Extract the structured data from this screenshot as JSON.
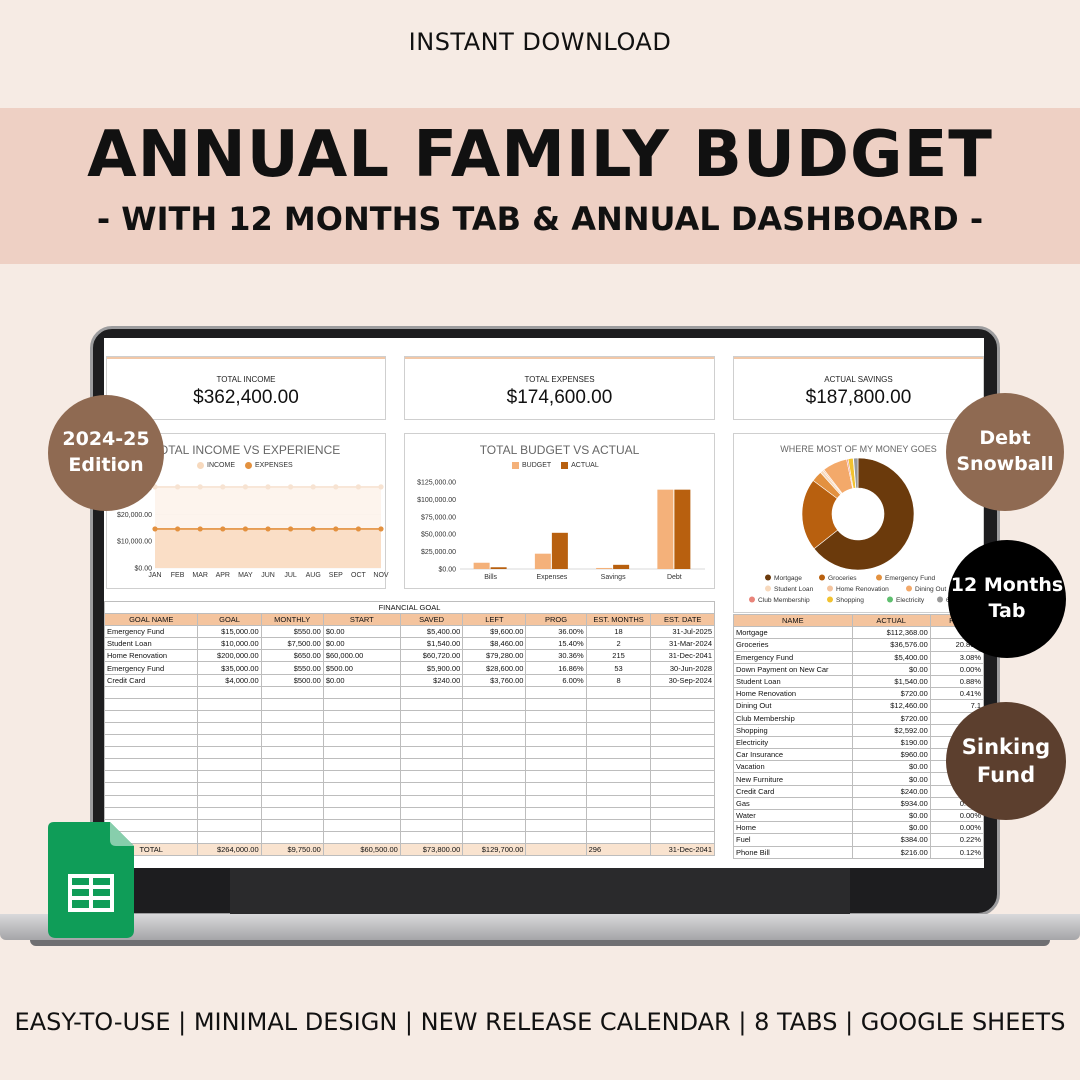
{
  "header": {
    "top_label": "INSTANT DOWNLOAD",
    "title": "ANNUAL FAMILY BUDGET",
    "subtitle": "- WITH 12 MONTHS TAB & ANNUAL DASHBOARD -"
  },
  "footer": {
    "features": "EASY-TO-USE | MINIMAL DESIGN | NEW RELEASE CALENDAR | 8 TABS | GOOGLE SHEETS"
  },
  "badges": {
    "edition": [
      "2024-25",
      "Edition"
    ],
    "debt": [
      "Debt",
      "Snowball"
    ],
    "months": [
      "12 Months",
      "Tab"
    ],
    "sinking": [
      "Sinking",
      "Fund"
    ]
  },
  "kpis": [
    {
      "label": "TOTAL INCOME",
      "value": "$362,400.00"
    },
    {
      "label": "TOTAL EXPENSES",
      "value": "$174,600.00"
    },
    {
      "label": "ACTUAL SAVINGS",
      "value": "$187,800.00"
    }
  ],
  "colors": {
    "light_orange": "#f4b17a",
    "dark_orange": "#b8600f",
    "brown": "#6b3a0c",
    "badge_brown": "#8f6a52",
    "badge_dark_brown": "#5c3f2e",
    "sheets_green": "#0f9d58"
  },
  "chart_data": [
    {
      "type": "line",
      "title": "TOTAL INCOME VS EXPERIENCE",
      "categories": [
        "JAN",
        "FEB",
        "MAR",
        "APR",
        "MAY",
        "JUN",
        "JUL",
        "AUG",
        "SEP",
        "OCT",
        "NOV"
      ],
      "yticks": [
        "$0.00",
        "$10,000.00",
        "$20,000.00",
        "$30,000.00"
      ],
      "ylim": [
        0,
        35000
      ],
      "series": [
        {
          "name": "INCOME",
          "values": [
            30200,
            30200,
            30200,
            30200,
            30200,
            30200,
            30200,
            30200,
            30200,
            30200,
            30200
          ]
        },
        {
          "name": "EXPENSES",
          "values": [
            14550,
            14550,
            14550,
            14550,
            14550,
            14550,
            14550,
            14550,
            14550,
            14550,
            14550
          ]
        }
      ],
      "legend": "top"
    },
    {
      "type": "bar",
      "title": "TOTAL BUDGET VS ACTUAL",
      "categories": [
        "Bills",
        "Expenses",
        "Savings",
        "Debt"
      ],
      "yticks": [
        "$0.00",
        "$25,000.00",
        "$50,000.00",
        "$75,000.00",
        "$100,000.00",
        "$125,000.00"
      ],
      "ylim": [
        0,
        125000
      ],
      "series": [
        {
          "name": "BUDGET",
          "values": [
            9000,
            22000,
            1500,
            114000
          ]
        },
        {
          "name": "ACTUAL",
          "values": [
            2500,
            52000,
            6000,
            114000
          ]
        }
      ],
      "legend": "top"
    },
    {
      "type": "pie",
      "title": "WHERE MOST OF MY MONEY GOES",
      "categories": [
        "Mortgage",
        "Groceries",
        "Emergency Fund",
        "Student Loan",
        "Home Renovation",
        "Dining Out",
        "Club Membership",
        "Shopping",
        "Electricity",
        "6 m"
      ],
      "values": [
        64.36,
        20.86,
        3.08,
        0.88,
        0.41,
        7.14,
        0.41,
        1.48,
        0.11,
        1.27
      ],
      "colors": [
        "#6b3a0c",
        "#b8600f",
        "#e3913f",
        "#f7d9bd",
        "#f4c49e",
        "#f3a96a",
        "#e9847a",
        "#f2c230",
        "#5fbf6f",
        "#999999"
      ],
      "legend": "bottom"
    }
  ],
  "goal_table": {
    "caption": "FINANCIAL GOAL",
    "columns": [
      "GOAL NAME",
      "GOAL",
      "MONTHLY",
      "START",
      "SAVED",
      "LEFT",
      "PROG",
      "EST. MONTHS",
      "EST. DATE"
    ],
    "rows": [
      [
        "Emergency Fund",
        "$15,000.00",
        "$550.00",
        "$0.00",
        "$5,400.00",
        "$9,600.00",
        "36.00%",
        "18",
        "31-Jul-2025"
      ],
      [
        "Student Loan",
        "$10,000.00",
        "$7,500.00",
        "$0.00",
        "$1,540.00",
        "$8,460.00",
        "15.40%",
        "2",
        "31-Mar-2024"
      ],
      [
        "Home Renovation",
        "$200,000.00",
        "$650.00",
        "$60,000.00",
        "$60,720.00",
        "$79,280.00",
        "30.36%",
        "215",
        "31-Dec-2041"
      ],
      [
        "Emergency Fund",
        "$35,000.00",
        "$550.00",
        "$500.00",
        "$5,900.00",
        "$28,600.00",
        "16.86%",
        "53",
        "30-Jun-2028"
      ],
      [
        "Credit Card",
        "$4,000.00",
        "$500.00",
        "$0.00",
        "$240.00",
        "$3,760.00",
        "6.00%",
        "8",
        "30-Sep-2024"
      ]
    ],
    "total": [
      "TOTAL",
      "$264,000.00",
      "$9,750.00",
      "$60,500.00",
      "$73,800.00",
      "$129,700.00",
      "",
      "296",
      "31-Dec-2041"
    ]
  },
  "expense_table": {
    "columns": [
      "NAME",
      "ACTUAL",
      "PER"
    ],
    "rows": [
      [
        "Mortgage",
        "$112,368.00",
        "64."
      ],
      [
        "Groceries",
        "$36,576.00",
        "20.86%"
      ],
      [
        "Emergency Fund",
        "$5,400.00",
        "3.08%"
      ],
      [
        "Down Payment on New Car",
        "$0.00",
        "0.00%"
      ],
      [
        "Student Loan",
        "$1,540.00",
        "0.88%"
      ],
      [
        "Home Renovation",
        "$720.00",
        "0.41%"
      ],
      [
        "Dining Out",
        "$12,460.00",
        "7.1"
      ],
      [
        "Club Membership",
        "$720.00",
        "0."
      ],
      [
        "Shopping",
        "$2,592.00",
        ""
      ],
      [
        "Electricity",
        "$190.00",
        ""
      ],
      [
        "Car Insurance",
        "$960.00",
        ""
      ],
      [
        "Vacation",
        "$0.00",
        ""
      ],
      [
        "New Furniture",
        "$0.00",
        ""
      ],
      [
        "Credit Card",
        "$240.00",
        "0.1"
      ],
      [
        "Gas",
        "$934.00",
        "0.53%"
      ],
      [
        "Water",
        "$0.00",
        "0.00%"
      ],
      [
        "Home",
        "$0.00",
        "0.00%"
      ],
      [
        "Fuel",
        "$384.00",
        "0.22%"
      ],
      [
        "Phone Bill",
        "$216.00",
        "0.12%"
      ]
    ]
  }
}
